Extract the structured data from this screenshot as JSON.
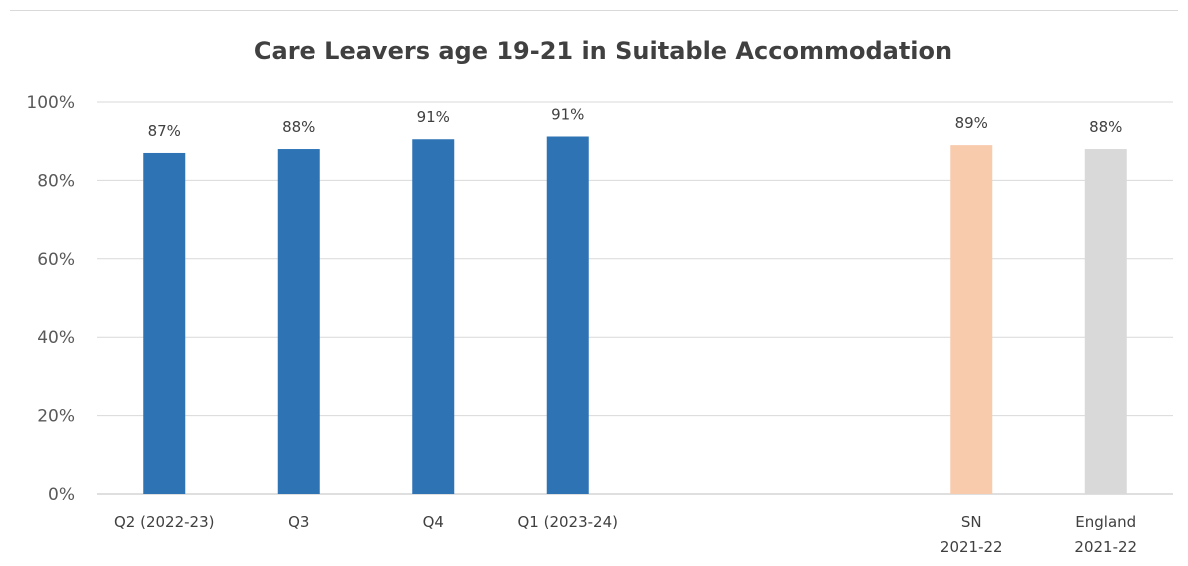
{
  "chart_data": {
    "type": "bar",
    "title": "Care Leavers age 19-21 in Suitable Accommodation",
    "xlabel": "",
    "ylabel": "",
    "ylim": [
      0,
      100
    ],
    "y_ticks": [
      "0%",
      "20%",
      "40%",
      "60%",
      "80%",
      "100%"
    ],
    "grid": true,
    "legend": "none",
    "categories": [
      {
        "lines": [
          "Q2 (2022-23)"
        ]
      },
      {
        "lines": [
          "Q3"
        ]
      },
      {
        "lines": [
          "Q4"
        ]
      },
      {
        "lines": [
          "Q1 (2023-24)"
        ]
      },
      {
        "lines": [
          ""
        ]
      },
      {
        "lines": [
          ""
        ]
      },
      {
        "lines": [
          "SN",
          "2021-22"
        ]
      },
      {
        "lines": [
          "England",
          "2021-22"
        ]
      }
    ],
    "values": [
      87,
      88,
      90.5,
      91.2,
      null,
      null,
      89,
      88
    ],
    "data_labels": [
      "87%",
      "88%",
      "91%",
      "91%",
      "",
      "",
      "89%",
      "88%"
    ],
    "colors": [
      "#2e74b5",
      "#2e74b5",
      "#2e74b5",
      "#2e74b5",
      "#2e74b5",
      "#2e74b5",
      "#f8cbad",
      "#d9d9d9"
    ]
  }
}
